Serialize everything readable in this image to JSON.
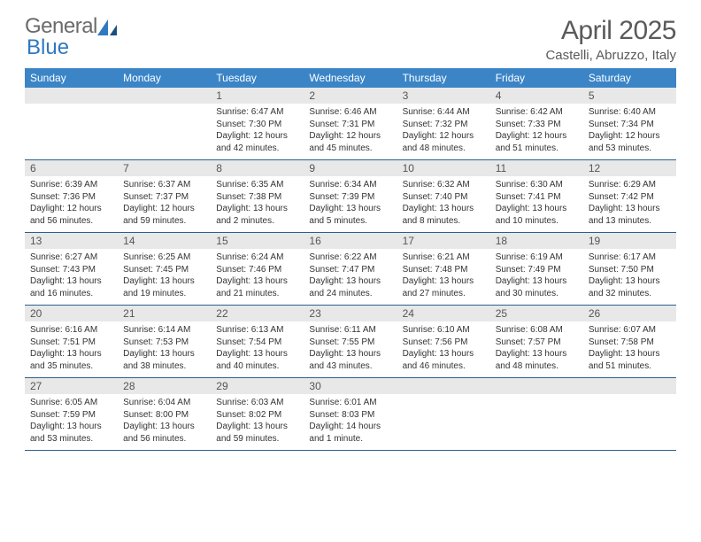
{
  "logo": {
    "text1": "General",
    "text2": "Blue"
  },
  "title": "April 2025",
  "location": "Castelli, Abruzzo, Italy",
  "colors": {
    "header_bg": "#3b85c7",
    "header_text": "#ffffff",
    "daynum_bg": "#e8e8e8",
    "daynum_text": "#555555",
    "cell_border": "#2c5f8d",
    "body_text": "#333333",
    "title_text": "#5a5a5a",
    "logo_gray": "#6b6b6b",
    "logo_blue": "#2f78c2"
  },
  "weekdays": [
    "Sunday",
    "Monday",
    "Tuesday",
    "Wednesday",
    "Thursday",
    "Friday",
    "Saturday"
  ],
  "weeks": [
    [
      {
        "day": "",
        "sunrise": "",
        "sunset": "",
        "daylight": ""
      },
      {
        "day": "",
        "sunrise": "",
        "sunset": "",
        "daylight": ""
      },
      {
        "day": "1",
        "sunrise": "Sunrise: 6:47 AM",
        "sunset": "Sunset: 7:30 PM",
        "daylight": "Daylight: 12 hours and 42 minutes."
      },
      {
        "day": "2",
        "sunrise": "Sunrise: 6:46 AM",
        "sunset": "Sunset: 7:31 PM",
        "daylight": "Daylight: 12 hours and 45 minutes."
      },
      {
        "day": "3",
        "sunrise": "Sunrise: 6:44 AM",
        "sunset": "Sunset: 7:32 PM",
        "daylight": "Daylight: 12 hours and 48 minutes."
      },
      {
        "day": "4",
        "sunrise": "Sunrise: 6:42 AM",
        "sunset": "Sunset: 7:33 PM",
        "daylight": "Daylight: 12 hours and 51 minutes."
      },
      {
        "day": "5",
        "sunrise": "Sunrise: 6:40 AM",
        "sunset": "Sunset: 7:34 PM",
        "daylight": "Daylight: 12 hours and 53 minutes."
      }
    ],
    [
      {
        "day": "6",
        "sunrise": "Sunrise: 6:39 AM",
        "sunset": "Sunset: 7:36 PM",
        "daylight": "Daylight: 12 hours and 56 minutes."
      },
      {
        "day": "7",
        "sunrise": "Sunrise: 6:37 AM",
        "sunset": "Sunset: 7:37 PM",
        "daylight": "Daylight: 12 hours and 59 minutes."
      },
      {
        "day": "8",
        "sunrise": "Sunrise: 6:35 AM",
        "sunset": "Sunset: 7:38 PM",
        "daylight": "Daylight: 13 hours and 2 minutes."
      },
      {
        "day": "9",
        "sunrise": "Sunrise: 6:34 AM",
        "sunset": "Sunset: 7:39 PM",
        "daylight": "Daylight: 13 hours and 5 minutes."
      },
      {
        "day": "10",
        "sunrise": "Sunrise: 6:32 AM",
        "sunset": "Sunset: 7:40 PM",
        "daylight": "Daylight: 13 hours and 8 minutes."
      },
      {
        "day": "11",
        "sunrise": "Sunrise: 6:30 AM",
        "sunset": "Sunset: 7:41 PM",
        "daylight": "Daylight: 13 hours and 10 minutes."
      },
      {
        "day": "12",
        "sunrise": "Sunrise: 6:29 AM",
        "sunset": "Sunset: 7:42 PM",
        "daylight": "Daylight: 13 hours and 13 minutes."
      }
    ],
    [
      {
        "day": "13",
        "sunrise": "Sunrise: 6:27 AM",
        "sunset": "Sunset: 7:43 PM",
        "daylight": "Daylight: 13 hours and 16 minutes."
      },
      {
        "day": "14",
        "sunrise": "Sunrise: 6:25 AM",
        "sunset": "Sunset: 7:45 PM",
        "daylight": "Daylight: 13 hours and 19 minutes."
      },
      {
        "day": "15",
        "sunrise": "Sunrise: 6:24 AM",
        "sunset": "Sunset: 7:46 PM",
        "daylight": "Daylight: 13 hours and 21 minutes."
      },
      {
        "day": "16",
        "sunrise": "Sunrise: 6:22 AM",
        "sunset": "Sunset: 7:47 PM",
        "daylight": "Daylight: 13 hours and 24 minutes."
      },
      {
        "day": "17",
        "sunrise": "Sunrise: 6:21 AM",
        "sunset": "Sunset: 7:48 PM",
        "daylight": "Daylight: 13 hours and 27 minutes."
      },
      {
        "day": "18",
        "sunrise": "Sunrise: 6:19 AM",
        "sunset": "Sunset: 7:49 PM",
        "daylight": "Daylight: 13 hours and 30 minutes."
      },
      {
        "day": "19",
        "sunrise": "Sunrise: 6:17 AM",
        "sunset": "Sunset: 7:50 PM",
        "daylight": "Daylight: 13 hours and 32 minutes."
      }
    ],
    [
      {
        "day": "20",
        "sunrise": "Sunrise: 6:16 AM",
        "sunset": "Sunset: 7:51 PM",
        "daylight": "Daylight: 13 hours and 35 minutes."
      },
      {
        "day": "21",
        "sunrise": "Sunrise: 6:14 AM",
        "sunset": "Sunset: 7:53 PM",
        "daylight": "Daylight: 13 hours and 38 minutes."
      },
      {
        "day": "22",
        "sunrise": "Sunrise: 6:13 AM",
        "sunset": "Sunset: 7:54 PM",
        "daylight": "Daylight: 13 hours and 40 minutes."
      },
      {
        "day": "23",
        "sunrise": "Sunrise: 6:11 AM",
        "sunset": "Sunset: 7:55 PM",
        "daylight": "Daylight: 13 hours and 43 minutes."
      },
      {
        "day": "24",
        "sunrise": "Sunrise: 6:10 AM",
        "sunset": "Sunset: 7:56 PM",
        "daylight": "Daylight: 13 hours and 46 minutes."
      },
      {
        "day": "25",
        "sunrise": "Sunrise: 6:08 AM",
        "sunset": "Sunset: 7:57 PM",
        "daylight": "Daylight: 13 hours and 48 minutes."
      },
      {
        "day": "26",
        "sunrise": "Sunrise: 6:07 AM",
        "sunset": "Sunset: 7:58 PM",
        "daylight": "Daylight: 13 hours and 51 minutes."
      }
    ],
    [
      {
        "day": "27",
        "sunrise": "Sunrise: 6:05 AM",
        "sunset": "Sunset: 7:59 PM",
        "daylight": "Daylight: 13 hours and 53 minutes."
      },
      {
        "day": "28",
        "sunrise": "Sunrise: 6:04 AM",
        "sunset": "Sunset: 8:00 PM",
        "daylight": "Daylight: 13 hours and 56 minutes."
      },
      {
        "day": "29",
        "sunrise": "Sunrise: 6:03 AM",
        "sunset": "Sunset: 8:02 PM",
        "daylight": "Daylight: 13 hours and 59 minutes."
      },
      {
        "day": "30",
        "sunrise": "Sunrise: 6:01 AM",
        "sunset": "Sunset: 8:03 PM",
        "daylight": "Daylight: 14 hours and 1 minute."
      },
      {
        "day": "",
        "sunrise": "",
        "sunset": "",
        "daylight": ""
      },
      {
        "day": "",
        "sunrise": "",
        "sunset": "",
        "daylight": ""
      },
      {
        "day": "",
        "sunrise": "",
        "sunset": "",
        "daylight": ""
      }
    ]
  ]
}
